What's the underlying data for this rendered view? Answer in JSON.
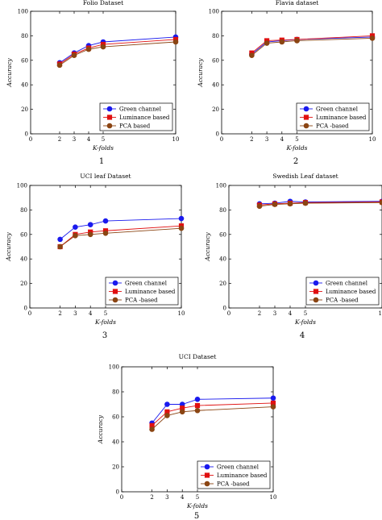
{
  "figure": {
    "colors": {
      "green": "#1a1aee",
      "luminance": "#e01010",
      "pca": "#8b4513",
      "axis": "#000000"
    },
    "panel_numbers": [
      "1",
      "2",
      "3",
      "4",
      "5"
    ]
  },
  "chart_data": [
    {
      "type": "line",
      "title": "Folio Dataset",
      "xlabel": "K-folds",
      "ylabel": "Accuracy",
      "x": [
        2,
        3,
        4,
        5,
        10
      ],
      "xticks": [
        "0",
        "2",
        "3",
        "4",
        "5",
        "10"
      ],
      "yticks": [
        "0",
        "20",
        "40",
        "60",
        "80",
        "100"
      ],
      "xlim": [
        0,
        10
      ],
      "ylim": [
        0,
        100
      ],
      "legend_position": "bottom-right",
      "series": [
        {
          "name": "Green channel",
          "values": [
            58,
            66,
            72,
            75,
            79
          ],
          "marker": "circle",
          "color": "#1a1aee"
        },
        {
          "name": "Luminance based",
          "values": [
            57,
            65,
            70,
            73,
            77
          ],
          "marker": "square",
          "color": "#e01010"
        },
        {
          "name": "PCA based",
          "values": [
            56,
            64,
            69,
            71,
            75
          ],
          "marker": "circle",
          "color": "#8b4513"
        }
      ]
    },
    {
      "type": "line",
      "title": "Flavia dataset",
      "xlabel": "K-folds",
      "ylabel": "Accuracy",
      "x": [
        2,
        3,
        4,
        5,
        10
      ],
      "xticks": [
        "0",
        "2",
        "3",
        "4",
        "5",
        "10"
      ],
      "yticks": [
        "0",
        "20",
        "40",
        "60",
        "80",
        "100"
      ],
      "xlim": [
        0,
        10
      ],
      "ylim": [
        0,
        100
      ],
      "legend_position": "bottom-right",
      "series": [
        {
          "name": "Green channel",
          "values": [
            65,
            75,
            76,
            77,
            79
          ],
          "marker": "circle",
          "color": "#1a1aee"
        },
        {
          "name": "Luminance based",
          "values": [
            66,
            76,
            76.5,
            77,
            80
          ],
          "marker": "square",
          "color": "#e01010"
        },
        {
          "name": "PCA -based",
          "values": [
            64,
            74,
            75,
            76,
            78
          ],
          "marker": "circle",
          "color": "#8b4513"
        }
      ]
    },
    {
      "type": "line",
      "title": "UCI leaf Dataset",
      "xlabel": "K-folds",
      "ylabel": "Accuracy",
      "x": [
        2,
        3,
        4,
        5,
        10
      ],
      "xticks": [
        "0",
        "2",
        "3",
        "4",
        "5",
        "10"
      ],
      "yticks": [
        "0",
        "20",
        "40",
        "60",
        "80",
        "100"
      ],
      "xlim": [
        0,
        10
      ],
      "ylim": [
        0,
        100
      ],
      "legend_position": "bottom-right",
      "series": [
        {
          "name": "Green channel",
          "values": [
            56,
            66,
            68,
            71,
            73
          ],
          "marker": "circle",
          "color": "#1a1aee"
        },
        {
          "name": "Luminance based",
          "values": [
            50,
            60,
            62,
            63,
            67
          ],
          "marker": "square",
          "color": "#e01010"
        },
        {
          "name": "PCA -based",
          "values": [
            50,
            59,
            60,
            61,
            65
          ],
          "marker": "circle",
          "color": "#8b4513"
        }
      ]
    },
    {
      "type": "line",
      "title": "Swedish Leaf dataset",
      "xlabel": "K-folds",
      "ylabel": "Accuracy",
      "x": [
        2,
        3,
        4,
        5,
        10
      ],
      "xticks": [
        "0",
        "2",
        "3",
        "4",
        "5",
        "10"
      ],
      "yticks": [
        "0",
        "20",
        "40",
        "60",
        "80",
        "100"
      ],
      "xlim": [
        0,
        10
      ],
      "ylim": [
        0,
        100
      ],
      "legend_position": "bottom-right",
      "series": [
        {
          "name": "Green channel",
          "values": [
            85,
            85.5,
            87,
            86.5,
            87
          ],
          "marker": "circle",
          "color": "#1a1aee"
        },
        {
          "name": "Luminance based",
          "values": [
            84,
            85,
            85.5,
            86,
            86.5
          ],
          "marker": "square",
          "color": "#e01010"
        },
        {
          "name": "PCA -based",
          "values": [
            83,
            84.5,
            85,
            85.5,
            86
          ],
          "marker": "circle",
          "color": "#8b4513"
        }
      ]
    },
    {
      "type": "line",
      "title": "UCI Dataset",
      "xlabel": "K-folds",
      "ylabel": "Accuracy",
      "x": [
        2,
        3,
        4,
        5,
        10
      ],
      "xticks": [
        "0",
        "2",
        "3",
        "4",
        "5",
        "10"
      ],
      "yticks": [
        "0",
        "20",
        "40",
        "60",
        "80",
        "100"
      ],
      "xlim": [
        0,
        10
      ],
      "ylim": [
        0,
        100
      ],
      "legend_position": "bottom-right",
      "series": [
        {
          "name": "Green channel",
          "values": [
            55,
            70,
            70,
            74,
            75
          ],
          "marker": "circle",
          "color": "#1a1aee"
        },
        {
          "name": "Luminance based",
          "values": [
            53,
            64,
            67,
            69,
            71
          ],
          "marker": "square",
          "color": "#e01010"
        },
        {
          "name": "PCA -based",
          "values": [
            50,
            61,
            64,
            65,
            68
          ],
          "marker": "circle",
          "color": "#8b4513"
        }
      ]
    }
  ]
}
